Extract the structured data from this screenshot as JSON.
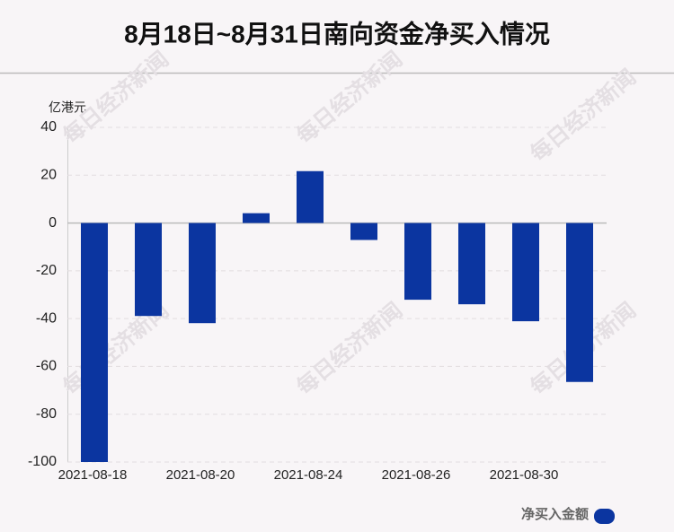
{
  "chart_data": {
    "type": "bar",
    "title": "8月18日~8月31日南向资金净买入情况",
    "y_label": "亿港元",
    "watermark": "每日经济新闻",
    "categories": [
      "2021-08-18",
      null,
      "2021-08-20",
      null,
      "2021-08-24",
      null,
      "2021-08-26",
      null,
      "2021-08-30",
      null
    ],
    "series": [
      {
        "name": "净买入金额",
        "color": "#0b35a0",
        "values": [
          -100,
          -38.9,
          -41.9,
          4.1,
          21.7,
          -7.1,
          -32.1,
          -34.0,
          -41.1,
          -66.5
        ]
      }
    ],
    "ylim": [
      -100,
      40
    ],
    "yticks": [
      -100,
      -80,
      -60,
      -40,
      -20,
      0,
      20,
      40
    ],
    "grid": true,
    "legend": "bottom-right"
  }
}
